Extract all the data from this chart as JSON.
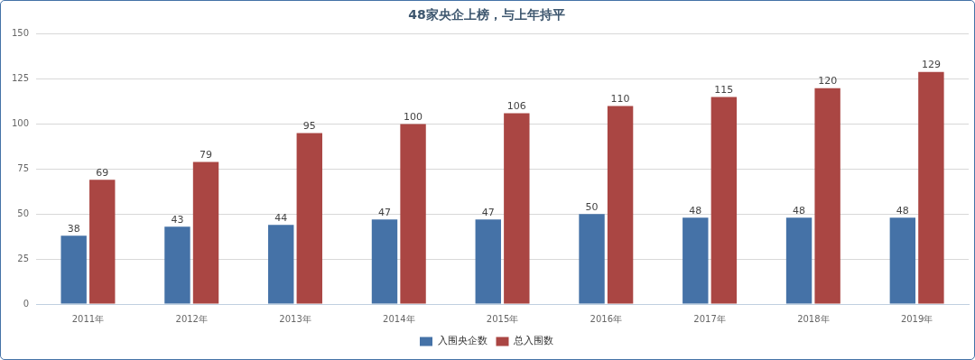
{
  "chart_data": {
    "type": "bar",
    "title": "48家央企上榜，与上年持平",
    "categories": [
      "2011年",
      "2012年",
      "2013年",
      "2014年",
      "2015年",
      "2016年",
      "2017年",
      "2018年",
      "2019年"
    ],
    "series": [
      {
        "name": "入围央企数",
        "color": "#4572a7",
        "values": [
          38,
          43,
          44,
          47,
          47,
          50,
          48,
          48,
          48
        ]
      },
      {
        "name": "总入围数",
        "color": "#aa4643",
        "values": [
          69,
          79,
          95,
          100,
          106,
          110,
          115,
          120,
          129
        ]
      }
    ],
    "ylim": [
      0,
      150
    ],
    "yticks": [
      0,
      25,
      50,
      75,
      100,
      125,
      150
    ],
    "grid": "y",
    "legend": "bottom",
    "data_labels": true
  }
}
